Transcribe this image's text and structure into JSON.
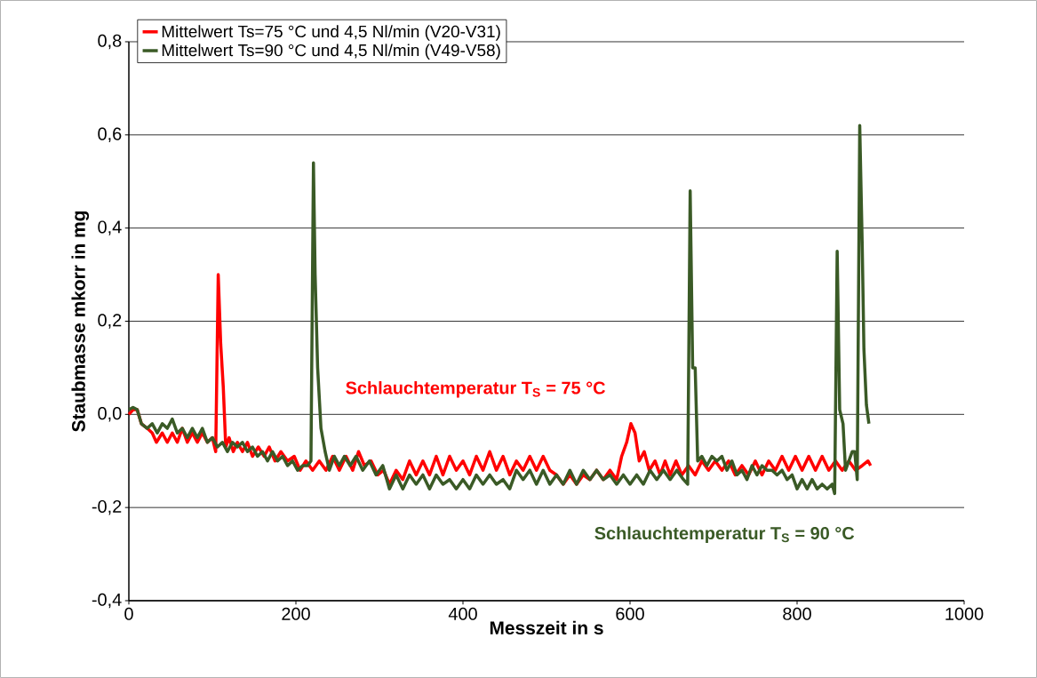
{
  "chart_data": {
    "type": "line",
    "xlabel": "Messzeit in s",
    "ylabel": "Staubmasse mkorr in mg",
    "xlim": [
      0,
      1000
    ],
    "xticks": [
      0,
      200,
      400,
      600,
      800,
      1000
    ],
    "ylim": [
      -0.4,
      0.8
    ],
    "yticks": [
      {
        "value": -0.4,
        "label": "-0,4"
      },
      {
        "value": -0.2,
        "label": "-0,2"
      },
      {
        "value": 0,
        "label": "0,0"
      },
      {
        "value": 0.2,
        "label": "0,2"
      },
      {
        "value": 0.4,
        "label": "0,4"
      },
      {
        "value": 0.6,
        "label": "0,6"
      },
      {
        "value": 0.8,
        "label": "0,8"
      }
    ],
    "grid": "y",
    "legend": "top left",
    "marker": "none",
    "line_style": "solid",
    "annotations": [
      "Schlauchtemperatur T$_{S}$ = 75 °C",
      "Schlauchtemperatur T$_{S}$ = 90 °C"
    ],
    "series": [
      {
        "name": "Mittelwert Ts=75 °C und 4,5 Nl/min (V20-V31)",
        "color": "#ff0000",
        "x": [
          0,
          5,
          10,
          15,
          22,
          28,
          33,
          40,
          46,
          52,
          58,
          64,
          70,
          76,
          82,
          88,
          94,
          100,
          104,
          107,
          110,
          113,
          116,
          120,
          125,
          130,
          136,
          142,
          148,
          155,
          162,
          168,
          175,
          182,
          190,
          198,
          205,
          212,
          220,
          228,
          236,
          244,
          252,
          260,
          268,
          275,
          282,
          290,
          298,
          305,
          312,
          320,
          328,
          336,
          344,
          352,
          360,
          368,
          376,
          384,
          392,
          400,
          408,
          416,
          424,
          432,
          440,
          448,
          456,
          464,
          472,
          480,
          488,
          496,
          504,
          512,
          520,
          528,
          536,
          544,
          552,
          560,
          568,
          576,
          584,
          590,
          596,
          601,
          606,
          611,
          617,
          623,
          630,
          636,
          642,
          648,
          655,
          662,
          670,
          678,
          686,
          694,
          702,
          710,
          718,
          726,
          734,
          742,
          750,
          758,
          766,
          774,
          782,
          790,
          798,
          806,
          814,
          822,
          830,
          838,
          846,
          854,
          862,
          870,
          878,
          885,
          888
        ],
        "values": [
          0.0,
          0.01,
          0.01,
          -0.02,
          -0.03,
          -0.04,
          -0.06,
          -0.04,
          -0.06,
          -0.04,
          -0.06,
          -0.03,
          -0.06,
          -0.04,
          -0.06,
          -0.04,
          -0.06,
          -0.05,
          -0.08,
          0.3,
          0.15,
          0.06,
          -0.07,
          -0.05,
          -0.08,
          -0.06,
          -0.08,
          -0.06,
          -0.09,
          -0.07,
          -0.09,
          -0.07,
          -0.1,
          -0.08,
          -0.1,
          -0.09,
          -0.12,
          -0.1,
          -0.12,
          -0.1,
          -0.12,
          -0.09,
          -0.12,
          -0.09,
          -0.12,
          -0.08,
          -0.11,
          -0.1,
          -0.13,
          -0.12,
          -0.15,
          -0.12,
          -0.14,
          -0.1,
          -0.13,
          -0.1,
          -0.13,
          -0.09,
          -0.13,
          -0.09,
          -0.12,
          -0.1,
          -0.13,
          -0.09,
          -0.12,
          -0.08,
          -0.12,
          -0.09,
          -0.13,
          -0.1,
          -0.12,
          -0.09,
          -0.12,
          -0.09,
          -0.12,
          -0.13,
          -0.15,
          -0.13,
          -0.15,
          -0.13,
          -0.14,
          -0.12,
          -0.14,
          -0.12,
          -0.14,
          -0.09,
          -0.06,
          -0.02,
          -0.04,
          -0.1,
          -0.08,
          -0.12,
          -0.1,
          -0.13,
          -0.1,
          -0.13,
          -0.1,
          -0.13,
          -0.11,
          -0.13,
          -0.1,
          -0.12,
          -0.1,
          -0.12,
          -0.1,
          -0.13,
          -0.11,
          -0.13,
          -0.1,
          -0.13,
          -0.1,
          -0.12,
          -0.09,
          -0.12,
          -0.09,
          -0.12,
          -0.09,
          -0.12,
          -0.09,
          -0.12,
          -0.1,
          -0.12,
          -0.1,
          -0.12,
          -0.11,
          -0.1,
          -0.11
        ]
      },
      {
        "name": "Mittelwert Ts=90 °C und 4,5 Nl/min (V49-V58)",
        "color": "#3a5a26",
        "x": [
          0,
          5,
          10,
          15,
          22,
          28,
          34,
          40,
          46,
          52,
          58,
          64,
          70,
          76,
          82,
          88,
          94,
          100,
          106,
          112,
          118,
          124,
          130,
          136,
          142,
          148,
          154,
          160,
          166,
          172,
          178,
          184,
          190,
          196,
          202,
          208,
          214,
          218,
          221,
          223,
          226,
          230,
          235,
          240,
          246,
          252,
          258,
          265,
          272,
          280,
          288,
          296,
          304,
          312,
          320,
          328,
          336,
          344,
          352,
          360,
          368,
          376,
          384,
          392,
          400,
          408,
          416,
          424,
          432,
          440,
          448,
          456,
          464,
          472,
          480,
          488,
          496,
          504,
          512,
          520,
          528,
          536,
          544,
          552,
          560,
          568,
          576,
          584,
          592,
          600,
          608,
          616,
          624,
          632,
          640,
          648,
          656,
          664,
          669,
          672,
          675,
          678,
          681,
          686,
          692,
          698,
          704,
          710,
          716,
          722,
          728,
          734,
          740,
          746,
          752,
          758,
          764,
          770,
          776,
          782,
          788,
          794,
          800,
          806,
          812,
          818,
          824,
          830,
          836,
          842,
          845,
          848,
          851,
          855,
          858,
          862,
          866,
          869,
          872,
          875,
          878,
          880,
          883,
          886
        ],
        "values": [
          0.01,
          0.015,
          0.01,
          -0.02,
          -0.03,
          -0.02,
          -0.04,
          -0.02,
          -0.03,
          -0.01,
          -0.04,
          -0.03,
          -0.05,
          -0.03,
          -0.05,
          -0.03,
          -0.06,
          -0.05,
          -0.07,
          -0.06,
          -0.08,
          -0.06,
          -0.07,
          -0.06,
          -0.08,
          -0.07,
          -0.09,
          -0.08,
          -0.1,
          -0.08,
          -0.1,
          -0.09,
          -0.11,
          -0.1,
          -0.12,
          -0.11,
          -0.11,
          -0.1,
          0.54,
          0.3,
          0.1,
          -0.03,
          -0.08,
          -0.12,
          -0.09,
          -0.11,
          -0.09,
          -0.11,
          -0.09,
          -0.12,
          -0.1,
          -0.13,
          -0.11,
          -0.16,
          -0.13,
          -0.16,
          -0.13,
          -0.15,
          -0.13,
          -0.16,
          -0.13,
          -0.15,
          -0.14,
          -0.16,
          -0.14,
          -0.16,
          -0.13,
          -0.15,
          -0.13,
          -0.15,
          -0.14,
          -0.16,
          -0.12,
          -0.14,
          -0.12,
          -0.15,
          -0.12,
          -0.15,
          -0.13,
          -0.15,
          -0.12,
          -0.15,
          -0.12,
          -0.14,
          -0.12,
          -0.14,
          -0.13,
          -0.15,
          -0.13,
          -0.15,
          -0.13,
          -0.15,
          -0.12,
          -0.14,
          -0.12,
          -0.14,
          -0.12,
          -0.14,
          -0.15,
          0.48,
          0.1,
          0.1,
          -0.1,
          -0.09,
          -0.11,
          -0.09,
          -0.1,
          -0.09,
          -0.12,
          -0.1,
          -0.13,
          -0.12,
          -0.14,
          -0.11,
          -0.13,
          -0.11,
          -0.12,
          -0.12,
          -0.13,
          -0.12,
          -0.14,
          -0.13,
          -0.16,
          -0.14,
          -0.16,
          -0.14,
          -0.16,
          -0.15,
          -0.16,
          -0.15,
          -0.17,
          0.35,
          0.01,
          -0.02,
          -0.12,
          -0.1,
          -0.08,
          -0.08,
          -0.14,
          0.62,
          0.36,
          0.14,
          0.02,
          -0.02
        ]
      }
    ]
  }
}
